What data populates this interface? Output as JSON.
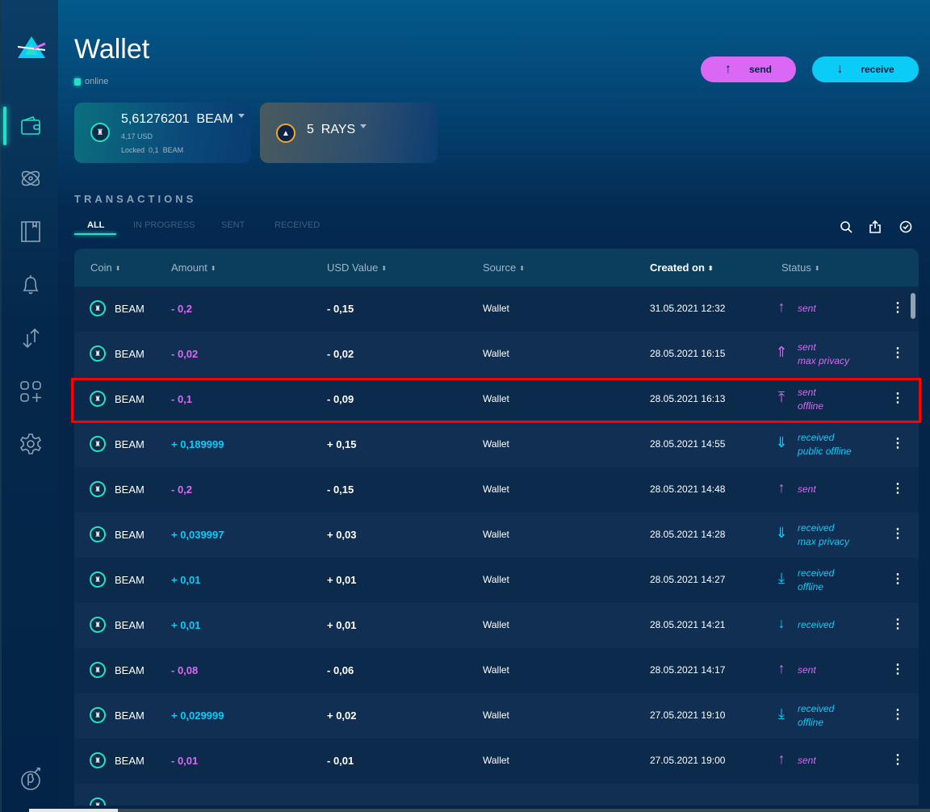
{
  "header": {
    "title": "Wallet",
    "connection_status": "online",
    "send_label": "send",
    "receive_label": "receive"
  },
  "sidebar": {
    "items": [
      {
        "name": "wallet",
        "active": true
      },
      {
        "name": "atomic-swap"
      },
      {
        "name": "address-book"
      },
      {
        "name": "notifications"
      },
      {
        "name": "dex"
      },
      {
        "name": "dapps"
      },
      {
        "name": "settings"
      }
    ]
  },
  "balances": [
    {
      "amount": "5,61276201",
      "unit": "BEAM",
      "usd": "4,17 USD",
      "locked_label": "Locked",
      "locked_amount": "0,1",
      "locked_unit": "BEAM"
    },
    {
      "amount": "5",
      "unit": "RAYS"
    }
  ],
  "transactions": {
    "title": "TRANSACTIONS",
    "tabs": [
      "ALL",
      "IN PROGRESS",
      "SENT",
      "RECEIVED"
    ],
    "active_tab": "ALL",
    "columns": [
      "Coin",
      "Amount",
      "USD Value",
      "Source",
      "Created on",
      "Status"
    ],
    "sorted_column": "Created on",
    "rows": [
      {
        "coin": "BEAM",
        "amount": "- 0,2",
        "usd": "- 0,15",
        "source": "Wallet",
        "created": "31.05.2021 12:32",
        "status": [
          "sent"
        ],
        "icon": "sent-icon",
        "dir": "out"
      },
      {
        "coin": "BEAM",
        "amount": "- 0,02",
        "usd": "- 0,02",
        "source": "Wallet",
        "created": "28.05.2021 16:15",
        "status": [
          "sent",
          "max privacy"
        ],
        "icon": "sent-max-privacy-icon",
        "dir": "out"
      },
      {
        "coin": "BEAM",
        "amount": "- 0,1",
        "usd": "- 0,09",
        "source": "Wallet",
        "created": "28.05.2021 16:13",
        "status": [
          "sent",
          "offline"
        ],
        "icon": "sent-offline-icon",
        "dir": "out"
      },
      {
        "coin": "BEAM",
        "amount": "+ 0,189999",
        "usd": "+ 0,15",
        "source": "Wallet",
        "created": "28.05.2021 14:55",
        "status": [
          "received",
          "public offline"
        ],
        "icon": "received-public-offline-icon",
        "dir": "in"
      },
      {
        "coin": "BEAM",
        "amount": "- 0,2",
        "usd": "- 0,15",
        "source": "Wallet",
        "created": "28.05.2021 14:48",
        "status": [
          "sent"
        ],
        "icon": "sent-icon",
        "dir": "out"
      },
      {
        "coin": "BEAM",
        "amount": "+ 0,039997",
        "usd": "+ 0,03",
        "source": "Wallet",
        "created": "28.05.2021 14:28",
        "status": [
          "received",
          "max privacy"
        ],
        "icon": "received-max-privacy-icon",
        "dir": "in"
      },
      {
        "coin": "BEAM",
        "amount": "+ 0,01",
        "usd": "+ 0,01",
        "source": "Wallet",
        "created": "28.05.2021 14:27",
        "status": [
          "received",
          "offline"
        ],
        "icon": "received-offline-icon",
        "dir": "in"
      },
      {
        "coin": "BEAM",
        "amount": "+ 0,01",
        "usd": "+ 0,01",
        "source": "Wallet",
        "created": "28.05.2021 14:21",
        "status": [
          "received"
        ],
        "icon": "received-icon",
        "dir": "in"
      },
      {
        "coin": "BEAM",
        "amount": "- 0,08",
        "usd": "- 0,06",
        "source": "Wallet",
        "created": "28.05.2021 14:17",
        "status": [
          "sent"
        ],
        "icon": "sent-icon",
        "dir": "out"
      },
      {
        "coin": "BEAM",
        "amount": "+ 0,029999",
        "usd": "+ 0,02",
        "source": "Wallet",
        "created": "27.05.2021 19:10",
        "status": [
          "received",
          "offline"
        ],
        "icon": "received-offline-icon",
        "dir": "in"
      },
      {
        "coin": "BEAM",
        "amount": "- 0,01",
        "usd": "- 0,01",
        "source": "Wallet",
        "created": "27.05.2021 19:00",
        "status": [
          "sent"
        ],
        "icon": "sent-icon",
        "dir": "out"
      }
    ]
  },
  "colors": {
    "accent": "#25e0c5",
    "sent": "#da68f5",
    "received": "#0bccf7",
    "highlight": "#ff0000"
  }
}
